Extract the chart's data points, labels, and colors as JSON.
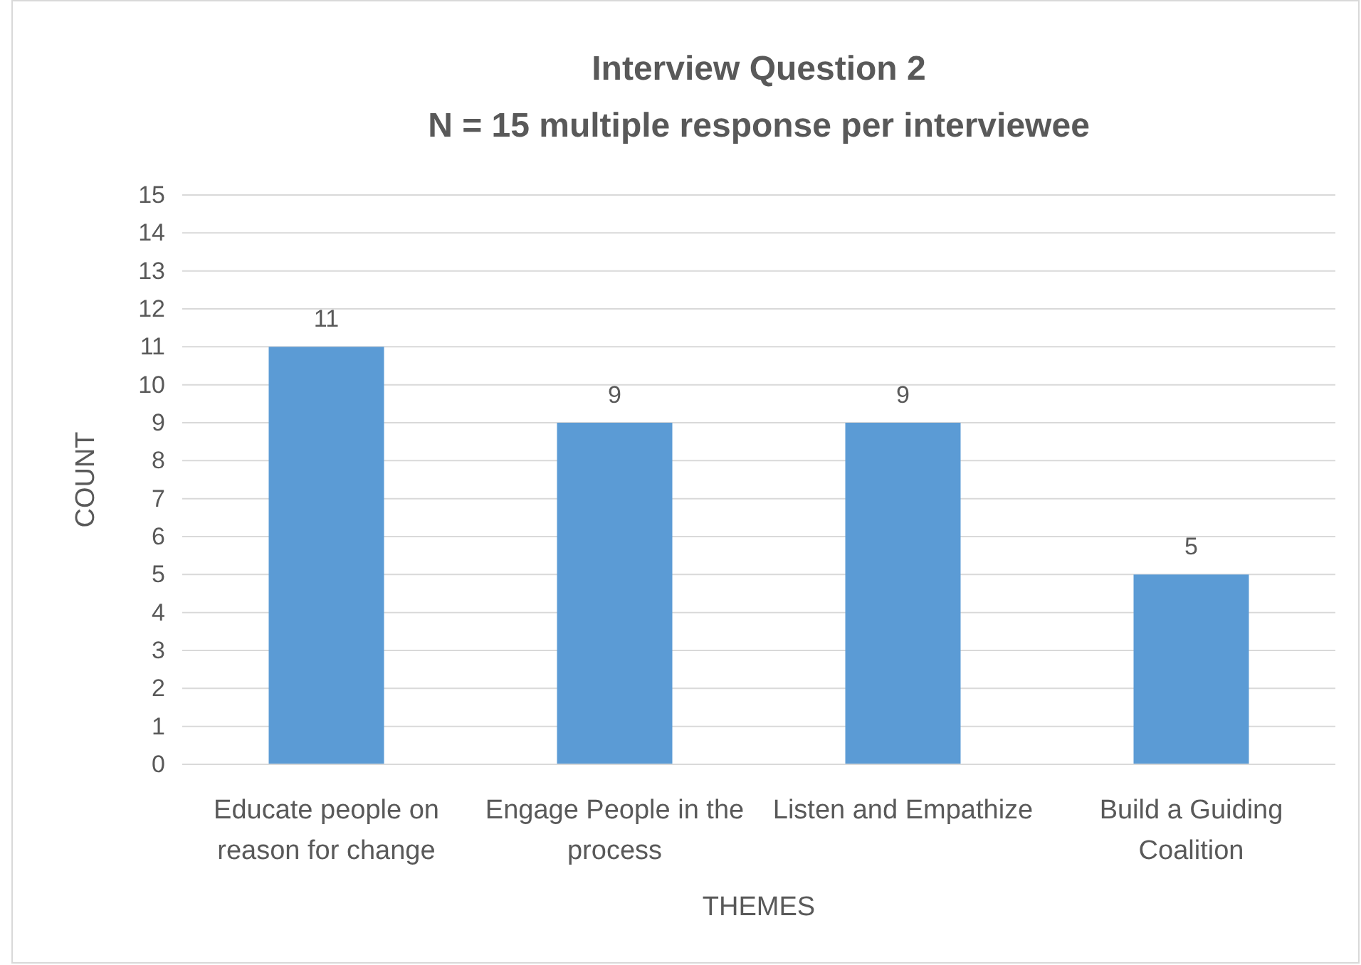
{
  "chart_data": {
    "type": "bar",
    "title": "Interview Question 2",
    "subtitle": "N = 15 multiple response per interviewee",
    "xlabel": "THEMES",
    "ylabel": "COUNT",
    "categories": [
      "Educate people on reason for change",
      "Engage People in the process",
      "Listen and Empathize",
      "Build a Guiding Coalition"
    ],
    "values": [
      11,
      9,
      9,
      5
    ],
    "color": "#5b9bd5",
    "ylim": [
      0,
      15
    ],
    "yticks": [
      0,
      1,
      2,
      3,
      4,
      5,
      6,
      7,
      8,
      9,
      10,
      11,
      12,
      13,
      14,
      15
    ],
    "grid": "y",
    "data_labels": true
  }
}
